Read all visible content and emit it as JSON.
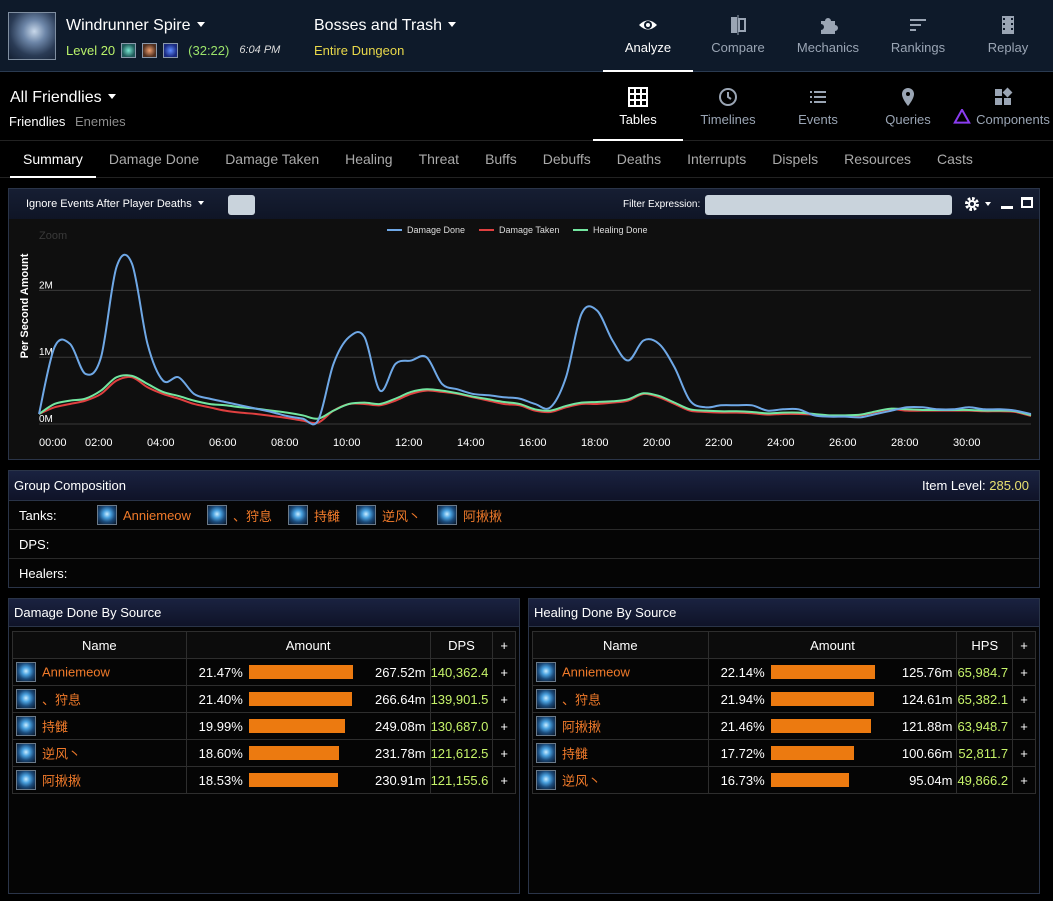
{
  "header": {
    "dungeon_name": "Windrunner Spire",
    "level": "Level 20",
    "timer": "(32:22)",
    "time_of_day": "6:04 PM",
    "fight_name": "Bosses and Trash",
    "fight_scope": "Entire Dungeon"
  },
  "top_nav": [
    {
      "label": "Analyze",
      "icon": "eye-icon"
    },
    {
      "label": "Compare",
      "icon": "compare-icon"
    },
    {
      "label": "Mechanics",
      "icon": "puzzle-icon"
    },
    {
      "label": "Rankings",
      "icon": "rankings-icon"
    },
    {
      "label": "Replay",
      "icon": "film-icon"
    }
  ],
  "view": {
    "title": "All Friendlies",
    "sub_friendlies": "Friendlies",
    "sub_enemies": "Enemies"
  },
  "view_nav": [
    {
      "label": "Tables",
      "icon": "grid-icon"
    },
    {
      "label": "Timelines",
      "icon": "clock-icon"
    },
    {
      "label": "Events",
      "icon": "list-icon"
    },
    {
      "label": "Queries",
      "icon": "map-pin-icon"
    },
    {
      "label": "Components",
      "icon": "components-icon"
    }
  ],
  "tabs": [
    "Summary",
    "Damage Done",
    "Damage Taken",
    "Healing",
    "Threat",
    "Buffs",
    "Debuffs",
    "Deaths",
    "Interrupts",
    "Dispels",
    "Resources",
    "Casts"
  ],
  "graph": {
    "ignore_label": "Ignore Events After Player Deaths",
    "filter_label": "Filter Expression:",
    "zoom_label": "Zoom",
    "colors": {
      "damage_done": "#6fa8e6",
      "damage_taken": "#e04040",
      "healing_done": "#73e6a0"
    }
  },
  "chart_data": {
    "type": "line",
    "ylabel": "Per Second Amount",
    "ylim": [
      0,
      2800000
    ],
    "xlim": [
      0,
      32
    ],
    "x_ticks": [
      "00:00",
      "02:00",
      "04:00",
      "06:00",
      "08:00",
      "10:00",
      "12:00",
      "14:00",
      "16:00",
      "18:00",
      "20:00",
      "22:00",
      "24:00",
      "26:00",
      "28:00",
      "30:00"
    ],
    "y_ticks": [
      "0M",
      "1M",
      "2M"
    ],
    "x": [
      0,
      0.5,
      1,
      1.5,
      2,
      2.5,
      3,
      3.5,
      4,
      4.5,
      5,
      5.5,
      6,
      6.5,
      7,
      7.5,
      8,
      8.5,
      9,
      9.5,
      10,
      10.5,
      11,
      11.5,
      12,
      12.5,
      13,
      13.5,
      14,
      14.5,
      15,
      15.5,
      16,
      16.5,
      17,
      17.5,
      18,
      18.5,
      19,
      19.5,
      20,
      20.5,
      21,
      21.5,
      22,
      22.5,
      23,
      23.5,
      24,
      24.5,
      25,
      25.5,
      26,
      26.5,
      27,
      27.5,
      28,
      28.5,
      29,
      29.5,
      30,
      30.5,
      31,
      31.5,
      32
    ],
    "series": [
      {
        "name": "Damage Done",
        "values": [
          150000,
          1150000,
          1200000,
          750000,
          1000000,
          2350000,
          2400000,
          1200000,
          650000,
          700000,
          450000,
          380000,
          330000,
          280000,
          230000,
          180000,
          120000,
          80000,
          50000,
          900000,
          1300000,
          1300000,
          500000,
          900000,
          950000,
          1000000,
          600000,
          520000,
          450000,
          430000,
          400000,
          380000,
          300000,
          250000,
          700000,
          1650000,
          1700000,
          1250000,
          950000,
          1250000,
          1200000,
          850000,
          350000,
          250000,
          280000,
          280000,
          280000,
          200000,
          220000,
          220000,
          130000,
          110000,
          110000,
          100000,
          150000,
          200000,
          250000,
          250000,
          220000,
          220000,
          250000,
          220000,
          220000,
          200000,
          150000
        ]
      },
      {
        "name": "Damage Taken",
        "values": [
          150000,
          250000,
          300000,
          350000,
          450000,
          650000,
          700000,
          550000,
          450000,
          380000,
          300000,
          250000,
          200000,
          170000,
          150000,
          120000,
          90000,
          50000,
          20000,
          200000,
          300000,
          300000,
          280000,
          350000,
          450000,
          500000,
          480000,
          450000,
          400000,
          350000,
          300000,
          280000,
          200000,
          180000,
          250000,
          300000,
          300000,
          320000,
          350000,
          450000,
          400000,
          300000,
          200000,
          180000,
          170000,
          170000,
          160000,
          140000,
          150000,
          150000,
          140000,
          120000,
          120000,
          130000,
          180000,
          220000,
          200000,
          200000,
          200000,
          200000,
          200000,
          190000,
          190000,
          180000,
          120000
        ]
      },
      {
        "name": "Healing Done",
        "values": [
          150000,
          300000,
          350000,
          380000,
          500000,
          700000,
          720000,
          600000,
          480000,
          420000,
          350000,
          300000,
          280000,
          250000,
          230000,
          200000,
          170000,
          130000,
          80000,
          200000,
          300000,
          320000,
          300000,
          380000,
          480000,
          520000,
          500000,
          460000,
          410000,
          370000,
          330000,
          300000,
          220000,
          200000,
          270000,
          320000,
          330000,
          340000,
          370000,
          460000,
          420000,
          320000,
          220000,
          200000,
          190000,
          190000,
          180000,
          160000,
          170000,
          170000,
          150000,
          130000,
          130000,
          140000,
          190000,
          230000,
          220000,
          210000,
          210000,
          210000,
          210000,
          200000,
          200000,
          190000,
          130000
        ]
      }
    ],
    "grid": true,
    "legend": "top-center"
  },
  "group": {
    "title": "Group Composition",
    "ilvl_label": "Item Level:",
    "ilvl_value": "285.00",
    "tanks_label": "Tanks:",
    "dps_label": "DPS:",
    "healers_label": "Healers:",
    "tanks": [
      "Anniemeow",
      "、狩息",
      "持雠",
      "逆风丶",
      "阿揪揪"
    ]
  },
  "damage_table": {
    "title": "Damage Done By Source",
    "headers": [
      "Name",
      "Amount",
      "DPS",
      "+"
    ],
    "rows": [
      {
        "name": "Anniemeow",
        "pct": "21.47%",
        "fill": 100,
        "amount": "267.52m",
        "rate": "140,362.4",
        "plus": "+"
      },
      {
        "name": "、狩息",
        "pct": "21.40%",
        "fill": 99.7,
        "amount": "266.64m",
        "rate": "139,901.5",
        "plus": "+"
      },
      {
        "name": "持雠",
        "pct": "19.99%",
        "fill": 93.1,
        "amount": "249.08m",
        "rate": "130,687.0",
        "plus": "+"
      },
      {
        "name": "逆风丶",
        "pct": "18.60%",
        "fill": 86.6,
        "amount": "231.78m",
        "rate": "121,612.5",
        "plus": "+"
      },
      {
        "name": "阿揪揪",
        "pct": "18.53%",
        "fill": 86.3,
        "amount": "230.91m",
        "rate": "121,155.6",
        "plus": "+"
      }
    ]
  },
  "healing_table": {
    "title": "Healing Done By Source",
    "headers": [
      "Name",
      "Amount",
      "HPS",
      "+"
    ],
    "rows": [
      {
        "name": "Anniemeow",
        "pct": "22.14%",
        "fill": 100,
        "amount": "125.76m",
        "rate": "65,984.7",
        "plus": "+"
      },
      {
        "name": "、狩息",
        "pct": "21.94%",
        "fill": 99.1,
        "amount": "124.61m",
        "rate": "65,382.1",
        "plus": "+"
      },
      {
        "name": "阿揪揪",
        "pct": "21.46%",
        "fill": 96.9,
        "amount": "121.88m",
        "rate": "63,948.7",
        "plus": "+"
      },
      {
        "name": "持雠",
        "pct": "17.72%",
        "fill": 80.0,
        "amount": "100.66m",
        "rate": "52,811.7",
        "plus": "+"
      },
      {
        "name": "逆风丶",
        "pct": "16.73%",
        "fill": 75.6,
        "amount": "95.04m",
        "rate": "49,866.2",
        "plus": "+"
      }
    ]
  }
}
